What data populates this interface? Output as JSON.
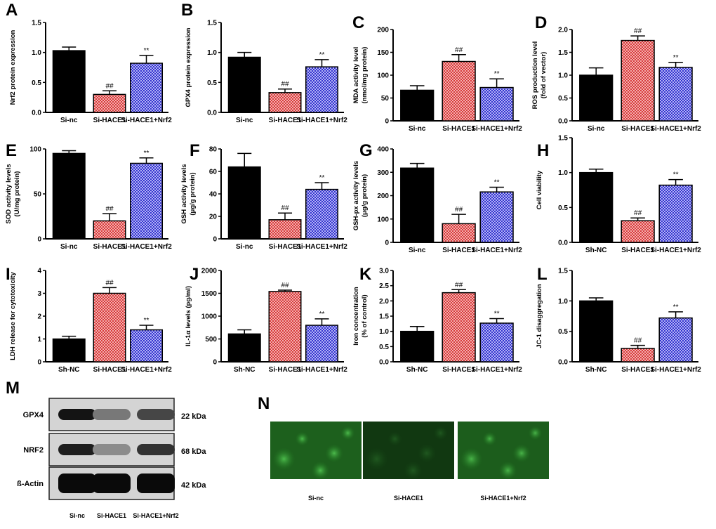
{
  "chart_data": [
    {
      "panel": "A",
      "type": "bar",
      "ylabel": "Nrf2 protein expression",
      "categories": [
        "Si-nc",
        "Si-HACE1",
        "Si-HACE1+Nrf2"
      ],
      "values": [
        1.03,
        0.3,
        0.82
      ],
      "errors": [
        0.06,
        0.06,
        0.13
      ],
      "annotations": [
        "",
        "##",
        "**"
      ],
      "ylim": [
        0,
        1.5
      ],
      "yticks": [
        "0.0",
        "0.5",
        "1.0",
        "1.5"
      ]
    },
    {
      "panel": "B",
      "type": "bar",
      "ylabel": "GPX4 protein expression",
      "categories": [
        "Si-nc",
        "Si-HACE1",
        "Si-HACE1+Nrf2"
      ],
      "values": [
        0.92,
        0.33,
        0.76
      ],
      "errors": [
        0.08,
        0.06,
        0.12
      ],
      "annotations": [
        "",
        "##",
        "**"
      ],
      "ylim": [
        0,
        1.5
      ],
      "yticks": [
        "0.0",
        "0.5",
        "1.0",
        "1.5"
      ]
    },
    {
      "panel": "C",
      "type": "bar",
      "ylabel": "MDA activity level\n(nmol/mg protein)",
      "categories": [
        "Si-nc",
        "Si-HACE1",
        "Si-HACE1+Nrf2"
      ],
      "values": [
        67,
        130,
        73
      ],
      "errors": [
        10,
        15,
        19
      ],
      "annotations": [
        "",
        "##",
        "**"
      ],
      "ylim": [
        0,
        200
      ],
      "yticks": [
        "0",
        "50",
        "100",
        "150",
        "200"
      ]
    },
    {
      "panel": "D",
      "type": "bar",
      "ylabel": "ROS production level\n(fold of vector)",
      "categories": [
        "Si-nc",
        "Si-HACE1",
        "Si-HACE1+Nrf2"
      ],
      "values": [
        1.0,
        1.76,
        1.17
      ],
      "errors": [
        0.16,
        0.1,
        0.11
      ],
      "annotations": [
        "",
        "##",
        "**"
      ],
      "ylim": [
        0,
        2.0
      ],
      "yticks": [
        "0.0",
        "0.5",
        "1.0",
        "1.5",
        "2.0"
      ]
    },
    {
      "panel": "E",
      "type": "bar",
      "ylabel": "SOD activity levels\n(U/mg protein)",
      "categories": [
        "Si-nc",
        "Si-HACE1",
        "Si-HACE1+Nrf2"
      ],
      "values": [
        95,
        20,
        84
      ],
      "errors": [
        3,
        8,
        6
      ],
      "annotations": [
        "",
        "##",
        "**"
      ],
      "ylim": [
        0,
        100
      ],
      "yticks": [
        "0",
        "50",
        "100"
      ]
    },
    {
      "panel": "F",
      "type": "bar",
      "ylabel": "GSH activity levels\n(μg/g protein)",
      "categories": [
        "Si-nc",
        "Si-HACE1",
        "Si-HACE1+Nrf2"
      ],
      "values": [
        64,
        17,
        44
      ],
      "errors": [
        12,
        6,
        6
      ],
      "annotations": [
        "",
        "##",
        "**"
      ],
      "ylim": [
        0,
        80
      ],
      "yticks": [
        "0",
        "20",
        "40",
        "60",
        "80"
      ]
    },
    {
      "panel": "G",
      "type": "bar",
      "ylabel": "GSH-px activity levels\n(μg/g protein)",
      "categories": [
        "Si-nc",
        "Si-HACE1",
        "Si-HACE1+Nrf2"
      ],
      "values": [
        318,
        80,
        216
      ],
      "errors": [
        20,
        40,
        20
      ],
      "annotations": [
        "",
        "##",
        "**"
      ],
      "ylim": [
        0,
        400
      ],
      "yticks": [
        "0",
        "100",
        "200",
        "300",
        "400"
      ]
    },
    {
      "panel": "H",
      "type": "bar",
      "ylabel": "Cell viability",
      "categories": [
        "Sh-NC",
        "Si-HACE1",
        "Si-HACE1+Nrf2"
      ],
      "values": [
        1.0,
        0.31,
        0.82
      ],
      "errors": [
        0.05,
        0.04,
        0.08
      ],
      "annotations": [
        "",
        "##",
        "**"
      ],
      "ylim": [
        0,
        1.5
      ],
      "yticks": [
        "0.0",
        "0.5",
        "1.0",
        "1.5"
      ]
    },
    {
      "panel": "I",
      "type": "bar",
      "ylabel": "LDH release for cytotoxicity",
      "categories": [
        "Sh-NC",
        "Si-HACE1",
        "Si-HACE1+Nrf2"
      ],
      "values": [
        1.0,
        3.0,
        1.4
      ],
      "errors": [
        0.12,
        0.25,
        0.2
      ],
      "annotations": [
        "",
        "##",
        "**"
      ],
      "ylim": [
        0,
        4
      ],
      "yticks": [
        "0",
        "1",
        "2",
        "3",
        "4"
      ]
    },
    {
      "panel": "J",
      "type": "bar",
      "ylabel": "IL-1α levels (pg/ml)",
      "categories": [
        "Sh-NC",
        "Si-HACE1",
        "Si-HACE1+Nrf2"
      ],
      "values": [
        610,
        1540,
        800
      ],
      "errors": [
        90,
        30,
        140
      ],
      "annotations": [
        "",
        "##",
        "**"
      ],
      "ylim": [
        0,
        2000
      ],
      "yticks": [
        "0",
        "500",
        "1000",
        "1500",
        "2000"
      ]
    },
    {
      "panel": "K",
      "type": "bar",
      "ylabel": "Iron concentration\n(% of control)",
      "categories": [
        "Sh-NC",
        "Si-HACE1",
        "Si-HACE1+Nrf2"
      ],
      "values": [
        1.0,
        2.27,
        1.27
      ],
      "errors": [
        0.16,
        0.1,
        0.15
      ],
      "annotations": [
        "",
        "##",
        "**"
      ],
      "ylim": [
        0,
        3.0
      ],
      "yticks": [
        "0.0",
        "0.5",
        "1.0",
        "1.5",
        "2.0",
        "2.5",
        "3.0"
      ]
    },
    {
      "panel": "L",
      "type": "bar",
      "ylabel": "JC-1 disaggregation",
      "categories": [
        "Sh-NC",
        "Si-HACE1",
        "Si-HACE1+Nrf2"
      ],
      "values": [
        1.0,
        0.22,
        0.72
      ],
      "errors": [
        0.05,
        0.05,
        0.1
      ],
      "annotations": [
        "",
        "##",
        "**"
      ],
      "ylim": [
        0,
        1.5
      ],
      "yticks": [
        "0.0",
        "0.5",
        "1.0",
        "1.5"
      ]
    }
  ],
  "colors": {
    "series": [
      "#000000",
      "#e85c5c",
      "#4848e0"
    ],
    "outline": "#000000"
  },
  "fill_patterns": [
    "solid",
    "red-checker",
    "blue-checker"
  ],
  "western_blot": {
    "panel": "M",
    "lanes": [
      "Si-nc",
      "Si-HACE1",
      "Si-HACE1+Nrf2"
    ],
    "rows": [
      {
        "protein": "GPX4",
        "size": "22 kDa",
        "intensity": [
          0.95,
          0.45,
          0.7
        ]
      },
      {
        "protein": "NRF2",
        "size": "68 kDa",
        "intensity": [
          0.9,
          0.35,
          0.8
        ]
      },
      {
        "protein": "ß-Actin",
        "size": "42 kDa",
        "intensity": [
          1.0,
          1.0,
          1.0
        ]
      }
    ]
  },
  "fluorescence": {
    "panel": "N",
    "labels": [
      "Si-nc",
      "Si-HACE1",
      "Si-HACE1+Nrf2"
    ],
    "brightness": [
      0.75,
      0.2,
      0.7
    ],
    "color": "#35b035"
  }
}
